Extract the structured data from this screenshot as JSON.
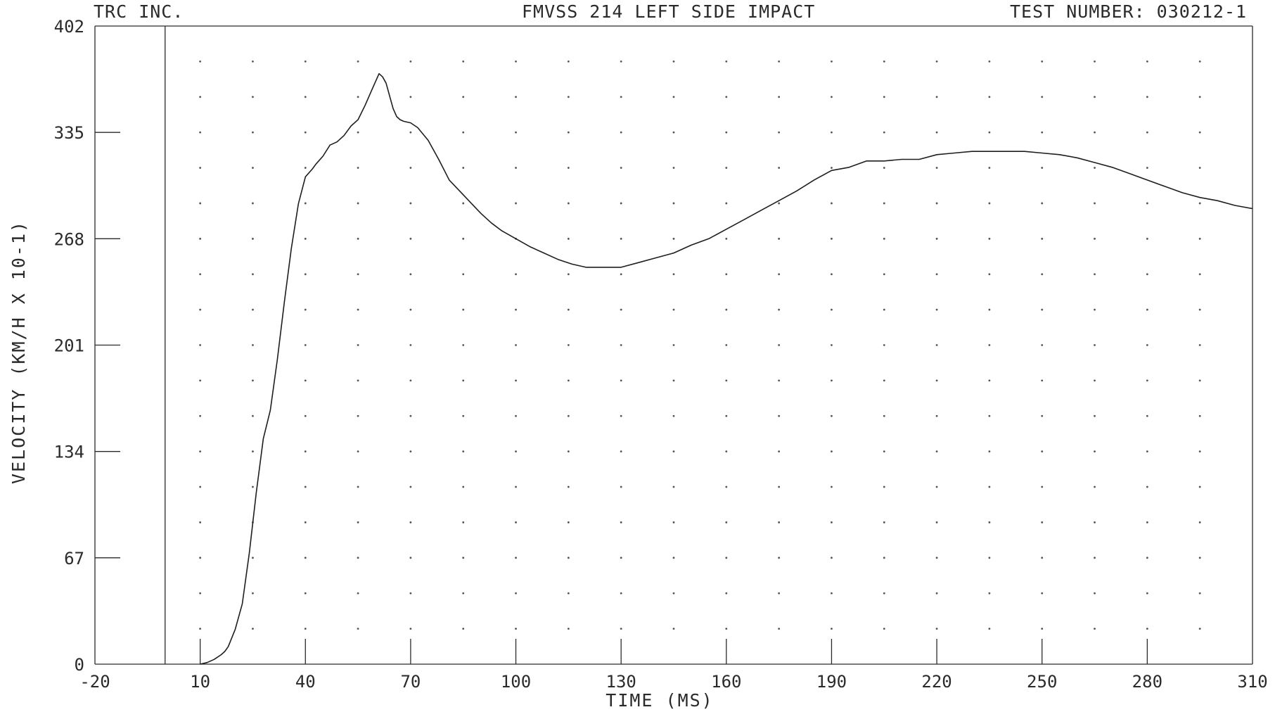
{
  "header": {
    "left": "TRC INC.",
    "center": "FMVSS 214 LEFT SIDE IMPACT",
    "right": "TEST NUMBER: 030212-1"
  },
  "chart_data": {
    "type": "line",
    "title": "FMVSS 214 LEFT SIDE IMPACT",
    "xlabel": "TIME (MS)",
    "ylabel": "VELOCITY (KM/H X 10-1)",
    "xlim": [
      -20,
      310
    ],
    "ylim": [
      0,
      402
    ],
    "xticks": [
      -20,
      10,
      40,
      70,
      100,
      130,
      160,
      190,
      220,
      250,
      280,
      310
    ],
    "xtick_labels": [
      "-20",
      "10",
      "40",
      "70",
      "100",
      "130",
      "160",
      "190",
      "220",
      "250",
      "280",
      "310"
    ],
    "yticks": [
      0,
      67,
      134,
      201,
      268,
      335,
      402
    ],
    "ytick_labels": [
      "0",
      "67",
      "134",
      "201",
      "268",
      "335",
      "402"
    ],
    "marker_line_x": 0,
    "grid": "dotted",
    "series": [
      {
        "x": [
          10,
          12,
          14,
          16,
          17,
          18,
          20,
          22,
          24,
          26,
          28,
          30,
          32,
          34,
          36,
          38,
          40,
          42,
          43,
          45,
          47,
          49,
          51,
          53,
          55,
          57,
          59,
          61,
          62,
          63,
          64,
          65,
          66,
          67,
          68,
          70,
          72,
          75,
          78,
          81,
          84,
          87,
          90,
          93,
          96,
          100,
          104,
          108,
          112,
          116,
          120,
          125,
          130,
          135,
          140,
          145,
          150,
          155,
          160,
          165,
          170,
          175,
          180,
          185,
          190,
          195,
          200,
          205,
          210,
          215,
          220,
          225,
          230,
          235,
          240,
          245,
          250,
          255,
          260,
          265,
          270,
          275,
          280,
          285,
          290,
          295,
          300,
          305,
          310
        ],
        "y": [
          0,
          1,
          3,
          6,
          8,
          11,
          22,
          38,
          70,
          108,
          142,
          160,
          192,
          228,
          262,
          290,
          307,
          312,
          315,
          320,
          327,
          329,
          333,
          339,
          343,
          352,
          362,
          372,
          370,
          366,
          358,
          350,
          345,
          343,
          342,
          341,
          338,
          330,
          318,
          305,
          298,
          291,
          284,
          278,
          273,
          268,
          263,
          259,
          255,
          252,
          250,
          250,
          250,
          253,
          256,
          259,
          264,
          268,
          274,
          280,
          286,
          292,
          298,
          305,
          311,
          313,
          317,
          317,
          318,
          318,
          321,
          322,
          323,
          323,
          323,
          323,
          322,
          321,
          319,
          316,
          313,
          309,
          305,
          301,
          297,
          294,
          292,
          289,
          287
        ]
      }
    ]
  }
}
